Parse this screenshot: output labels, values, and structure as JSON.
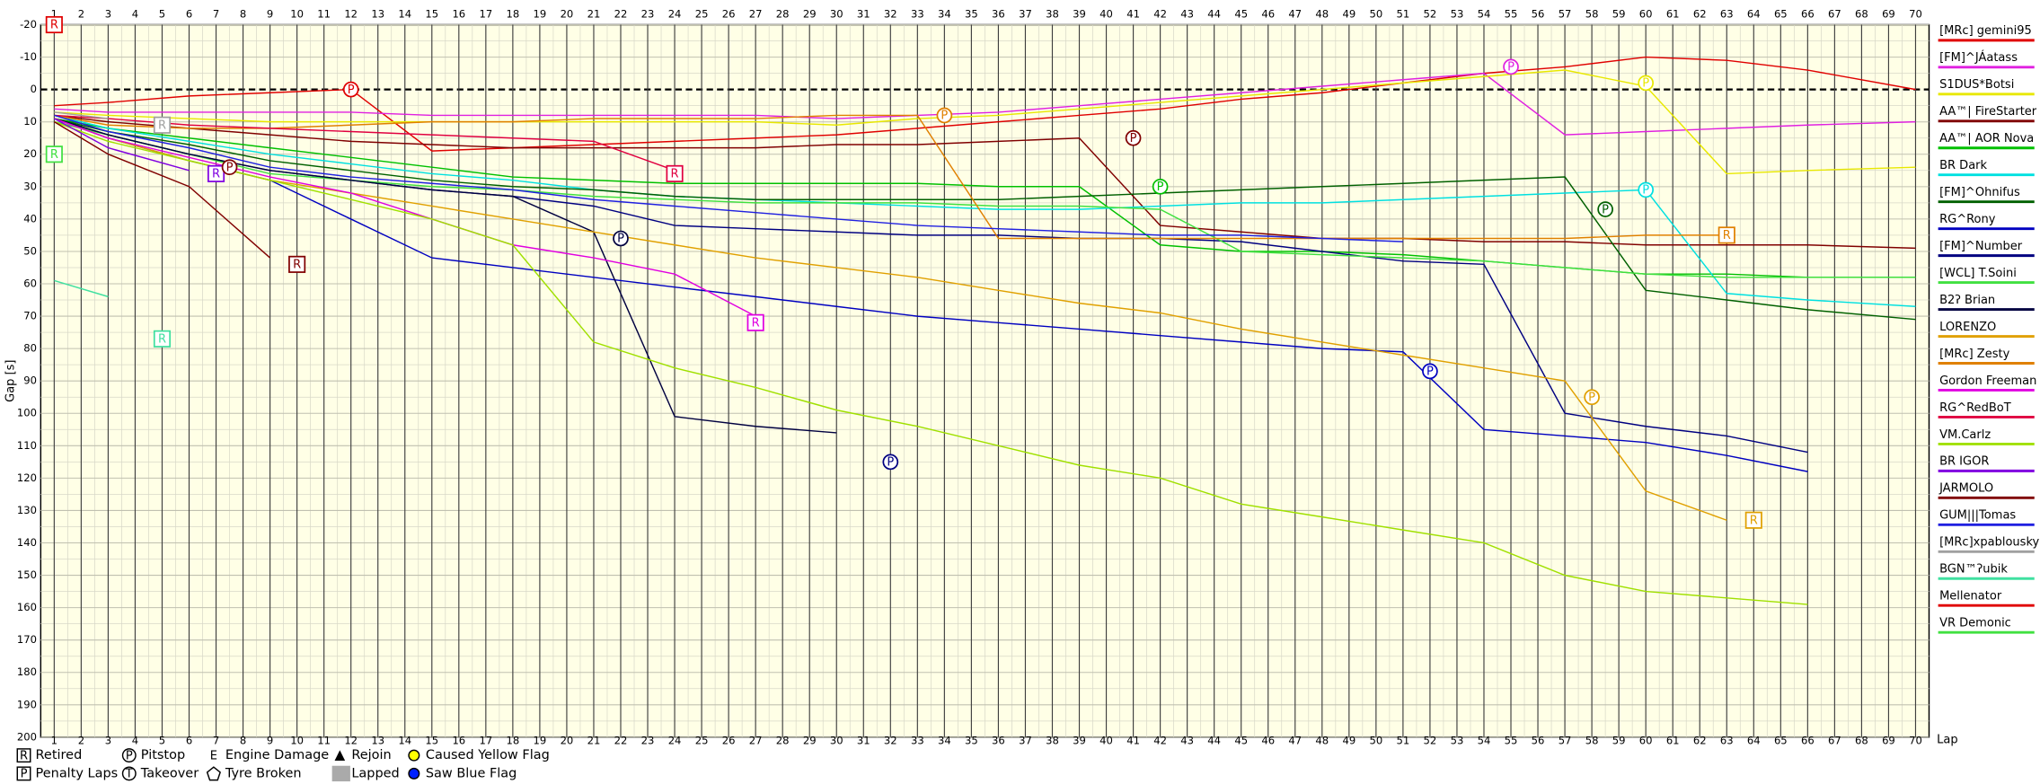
{
  "chart_data": {
    "type": "line",
    "y_label": "Gap [s]",
    "x_label": "Lap",
    "xlim": [
      0.5,
      70.5
    ],
    "ylim": [
      -20,
      200
    ],
    "invert_y": true,
    "grid": true,
    "legend": "right",
    "xticks": [
      1,
      2,
      3,
      4,
      5,
      6,
      7,
      8,
      9,
      10,
      11,
      12,
      13,
      14,
      15,
      16,
      17,
      18,
      19,
      20,
      21,
      22,
      23,
      24,
      25,
      26,
      27,
      28,
      29,
      30,
      31,
      32,
      33,
      34,
      35,
      36,
      37,
      38,
      39,
      40,
      41,
      42,
      43,
      44,
      45,
      46,
      47,
      48,
      49,
      50,
      51,
      52,
      53,
      54,
      55,
      56,
      57,
      58,
      59,
      60,
      61,
      62,
      63,
      64,
      65,
      66,
      67,
      68,
      69,
      70
    ],
    "yticks": [
      -20,
      -10,
      0,
      10,
      20,
      30,
      40,
      50,
      60,
      70,
      80,
      90,
      100,
      110,
      120,
      130,
      140,
      150,
      160,
      170,
      180,
      190,
      200
    ],
    "x": [
      1,
      3,
      6,
      9,
      12,
      15,
      18,
      21,
      24,
      27,
      30,
      33,
      36,
      39,
      42,
      45,
      48,
      51,
      54,
      57,
      60,
      63,
      66,
      70
    ],
    "series": [
      {
        "name": "[MRc] gemini95",
        "color": "#e00000",
        "values": [
          5,
          4,
          2,
          1,
          0,
          19,
          18,
          17,
          16,
          15,
          14,
          12,
          10,
          8,
          6,
          3,
          1,
          -2,
          -5,
          -7,
          -10,
          -9,
          -6,
          0
        ]
      },
      {
        "name": "[FM]^JÁatass",
        "color": "#e020e0",
        "values": [
          6,
          7,
          7,
          7,
          7,
          8,
          8,
          8,
          8,
          8,
          9,
          8,
          7,
          5,
          3,
          1,
          -1,
          -3,
          -5,
          14,
          13,
          12,
          11,
          10
        ]
      },
      {
        "name": "S1DUS*Botsi",
        "color": "#e8e800",
        "values": [
          7,
          8,
          9,
          10,
          10,
          10,
          10,
          10,
          10,
          10,
          11,
          9,
          8,
          6,
          4,
          2,
          0,
          -2,
          -4,
          -6,
          -1,
          26,
          25,
          24
        ]
      },
      {
        "name": "AA™| FireStarter",
        "color": "#800000",
        "values": [
          8,
          10,
          12,
          14,
          16,
          17,
          18,
          18,
          18,
          18,
          17,
          17,
          16,
          15,
          42,
          44,
          46,
          46,
          47,
          47,
          48,
          48,
          48,
          49
        ]
      },
      {
        "name": "AA™| AOR Nova",
        "color": "#00c000",
        "values": [
          9,
          12,
          15,
          18,
          21,
          24,
          27,
          28,
          29,
          29,
          29,
          29,
          30,
          30,
          48,
          50,
          50,
          51,
          53,
          55,
          57,
          57,
          58,
          58
        ]
      },
      {
        "name": "BR Dark",
        "color": "#00e0e0",
        "values": [
          8,
          12,
          16,
          20,
          23,
          26,
          28,
          31,
          33,
          34,
          35,
          36,
          37,
          37,
          36,
          35,
          35,
          34,
          33,
          32,
          31,
          63,
          65,
          67
        ]
      },
      {
        "name": "[FM]^Ohnifus",
        "color": "#006000",
        "values": [
          9,
          13,
          17,
          22,
          25,
          28,
          30,
          31,
          33,
          34,
          34,
          34,
          34,
          33,
          32,
          31,
          30,
          29,
          28,
          27,
          62,
          65,
          68,
          71
        ]
      },
      {
        "name": "RG^Rony",
        "color": "#0000c0",
        "values": [
          9,
          15,
          22,
          28,
          40,
          52,
          55,
          58,
          61,
          64,
          67,
          70,
          72,
          74,
          76,
          78,
          80,
          81,
          105,
          107,
          109,
          113,
          118,
          null
        ]
      },
      {
        "name": "[FM]^Number",
        "color": "#000080",
        "values": [
          9,
          14,
          20,
          25,
          28,
          31,
          33,
          36,
          42,
          43,
          44,
          45,
          45,
          46,
          46,
          47,
          50,
          53,
          54,
          100,
          104,
          107,
          112,
          null
        ]
      },
      {
        "name": "[WCL] T.Soini",
        "color": "#40e040",
        "values": [
          10,
          14,
          20,
          26,
          28,
          30,
          31,
          33,
          34,
          35,
          35,
          35,
          36,
          36,
          37,
          50,
          51,
          52,
          53,
          55,
          57,
          58,
          58,
          58
        ]
      },
      {
        "name": "B2ʔ Brian",
        "color": "#000040",
        "values": [
          9,
          14,
          20,
          25,
          28,
          31,
          33,
          44,
          101,
          104,
          106,
          null,
          null,
          null,
          null,
          null,
          null,
          null,
          null,
          null,
          null,
          null,
          null,
          null
        ]
      },
      {
        "name": "LORENZO",
        "color": "#e0a000",
        "values": [
          9,
          15,
          22,
          28,
          32,
          36,
          40,
          44,
          48,
          52,
          55,
          58,
          62,
          66,
          69,
          74,
          78,
          82,
          86,
          90,
          124,
          133,
          null,
          null
        ]
      },
      {
        "name": "[MRc] Zesty",
        "color": "#e08000",
        "values": [
          8,
          11,
          12,
          12,
          11,
          10,
          10,
          9,
          9,
          9,
          8,
          8,
          46,
          46,
          46,
          46,
          46,
          46,
          46,
          46,
          45,
          45,
          null,
          null
        ]
      },
      {
        "name": "Gordon Freeman",
        "color": "#e000e0",
        "values": [
          9,
          15,
          21,
          27,
          32,
          40,
          48,
          52,
          57,
          70,
          null,
          null,
          null,
          null,
          null,
          null,
          null,
          null,
          null,
          null,
          null,
          null,
          null,
          null
        ]
      },
      {
        "name": "RG^RedBoT",
        "color": "#e00040",
        "values": [
          8,
          9,
          11,
          12,
          13,
          14,
          15,
          16,
          25,
          null,
          null,
          null,
          null,
          null,
          null,
          null,
          null,
          null,
          null,
          null,
          null,
          null,
          null,
          null
        ]
      },
      {
        "name": "VM.Carlz",
        "color": "#a0e000",
        "values": [
          10,
          16,
          22,
          28,
          34,
          40,
          48,
          78,
          86,
          92,
          99,
          104,
          110,
          116,
          120,
          128,
          132,
          136,
          140,
          150,
          155,
          157,
          159,
          null
        ]
      },
      {
        "name": "BR IGOR",
        "color": "#8000e0",
        "values": [
          9,
          18,
          25,
          null,
          null,
          null,
          null,
          null,
          null,
          null,
          null,
          null,
          null,
          null,
          null,
          null,
          null,
          null,
          null,
          null,
          null,
          null,
          null,
          null
        ]
      },
      {
        "name": "JARMOLO",
        "color": "#800000",
        "values": [
          10,
          20,
          30,
          52,
          null,
          null,
          null,
          null,
          null,
          null,
          null,
          null,
          null,
          null,
          null,
          null,
          null,
          null,
          null,
          null,
          null,
          null,
          null,
          null
        ]
      },
      {
        "name": "GUM|||Tomas",
        "color": "#2020e0",
        "values": [
          8,
          13,
          18,
          24,
          27,
          29,
          31,
          34,
          36,
          38,
          40,
          42,
          43,
          44,
          45,
          45,
          46,
          47,
          null,
          null,
          null,
          null,
          null,
          null
        ]
      },
      {
        "name": "[MRc]xpablousky",
        "color": "#a0a0a0",
        "values": [
          7,
          9,
          null,
          null,
          null,
          null,
          null,
          null,
          null,
          null,
          null,
          null,
          null,
          null,
          null,
          null,
          null,
          null,
          null,
          null,
          null,
          null,
          null,
          null
        ]
      },
      {
        "name": "BGN™ʔubik",
        "color": "#40e0a0",
        "values": [
          59,
          64,
          null,
          null,
          null,
          null,
          null,
          null,
          null,
          null,
          null,
          null,
          null,
          null,
          null,
          null,
          null,
          null,
          null,
          null,
          null,
          null,
          null,
          null
        ]
      },
      {
        "name": "Mellenator",
        "color": "#e00000",
        "values": [
          -20,
          null,
          null,
          null,
          null,
          null,
          null,
          null,
          null,
          null,
          null,
          null,
          null,
          null,
          null,
          null,
          null,
          null,
          null,
          null,
          null,
          null,
          null,
          null
        ]
      },
      {
        "name": "VR Demonic",
        "color": "#40e040",
        "values": [
          20,
          null,
          null,
          null,
          null,
          null,
          null,
          null,
          null,
          null,
          null,
          null,
          null,
          null,
          null,
          null,
          null,
          null,
          null,
          null,
          null,
          null,
          null,
          null
        ]
      }
    ],
    "events": [
      {
        "label": "R",
        "x": 1,
        "y": -20,
        "color": "#e00000",
        "shape": "box"
      },
      {
        "label": "R",
        "x": 1,
        "y": 20,
        "color": "#40e040",
        "shape": "box"
      },
      {
        "label": "R",
        "x": 5,
        "y": 11,
        "color": "#a0a0a0",
        "shape": "box"
      },
      {
        "label": "R",
        "x": 5,
        "y": 77,
        "color": "#40e0a0",
        "shape": "box"
      },
      {
        "label": "R",
        "x": 7,
        "y": 26,
        "color": "#8000e0",
        "shape": "box"
      },
      {
        "label": "P",
        "x": 7.5,
        "y": 24,
        "color": "#800000",
        "shape": "circle"
      },
      {
        "label": "R",
        "x": 10,
        "y": 54,
        "color": "#800000",
        "shape": "box"
      },
      {
        "label": "P",
        "x": 12,
        "y": 0,
        "color": "#e00000",
        "shape": "circle"
      },
      {
        "label": "P",
        "x": 22,
        "y": 46,
        "color": "#000040",
        "shape": "circle"
      },
      {
        "label": "R",
        "x": 24,
        "y": 26,
        "color": "#e00040",
        "shape": "box"
      },
      {
        "label": "R",
        "x": 27,
        "y": 72,
        "color": "#e000e0",
        "shape": "box"
      },
      {
        "label": "P",
        "x": 32,
        "y": 115,
        "color": "#000080",
        "shape": "circle"
      },
      {
        "label": "P",
        "x": 34,
        "y": 8,
        "color": "#e08000",
        "shape": "circle"
      },
      {
        "label": "P",
        "x": 41,
        "y": 15,
        "color": "#800000",
        "shape": "circle"
      },
      {
        "label": "P",
        "x": 42,
        "y": 30,
        "color": "#00c000",
        "shape": "circle"
      },
      {
        "label": "P",
        "x": 52,
        "y": 87,
        "color": "#0000c0",
        "shape": "circle"
      },
      {
        "label": "P",
        "x": 55,
        "y": -7,
        "color": "#e020e0",
        "shape": "circle"
      },
      {
        "label": "P",
        "x": 58,
        "y": 95,
        "color": "#e0a000",
        "shape": "circle"
      },
      {
        "label": "P",
        "x": 58.5,
        "y": 37,
        "color": "#006000",
        "shape": "circle"
      },
      {
        "label": "P",
        "x": 60,
        "y": 31,
        "color": "#00e0e0",
        "shape": "circle"
      },
      {
        "label": "P",
        "x": 60,
        "y": -2,
        "color": "#e8e800",
        "shape": "circle"
      },
      {
        "label": "R",
        "x": 63,
        "y": 45,
        "color": "#e08000",
        "shape": "box"
      },
      {
        "label": "R",
        "x": 64,
        "y": 133,
        "color": "#e0a000",
        "shape": "box"
      }
    ],
    "symbol_legend": [
      {
        "symbol": "R",
        "label": "Retired",
        "shape": "box"
      },
      {
        "symbol": "P",
        "label": "Penalty Laps",
        "shape": "box"
      },
      {
        "symbol": "P",
        "label": "Pitstop",
        "shape": "circle"
      },
      {
        "symbol": "T",
        "label": "Takeover",
        "shape": "circle"
      },
      {
        "symbol": "E",
        "label": "Engine Damage",
        "shape": "plain"
      },
      {
        "label": "Tyre Broken",
        "shape": "pentagon"
      },
      {
        "label": "Rejoin",
        "shape": "triangle"
      },
      {
        "label": "Lapped",
        "shape": "gray"
      },
      {
        "label": "Caused Yellow Flag",
        "shape": "yellow-dot"
      },
      {
        "label": "Saw Blue Flag",
        "shape": "blue-dot"
      }
    ]
  }
}
